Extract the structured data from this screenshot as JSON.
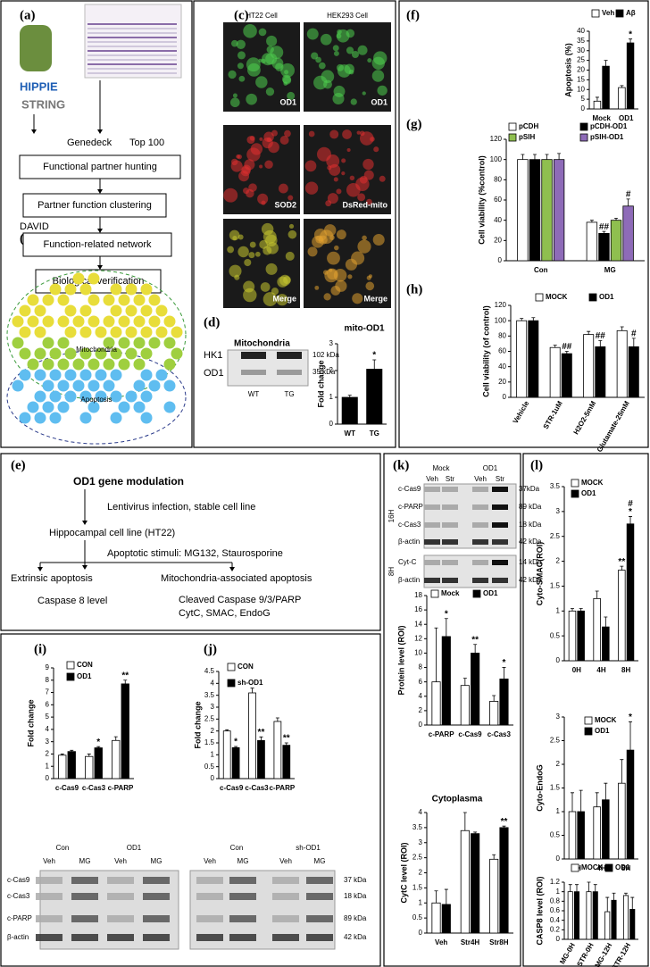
{
  "panel_labels": [
    "(a)",
    "(b)",
    "(c)",
    "(d)",
    "(e)",
    "(f)",
    "(g)",
    "(h)",
    "(i)",
    "(j)",
    "(k)",
    "(l)"
  ],
  "a": {
    "databases": [
      "HIPPIE",
      "STRING"
    ],
    "sources": [
      "Genedeck",
      "Top 100"
    ],
    "steps": [
      "Functional partner hunting",
      "Partner function clustering",
      "Function-related network",
      "Biological verification"
    ],
    "tool": "DAVID"
  },
  "b": {
    "groups": [
      "Mitochondria",
      "Apoptosis"
    ]
  },
  "c": {
    "columns": [
      "HT22 Cell",
      "HEK293 Cell"
    ],
    "image_labels": [
      "OD1",
      "OD1",
      "SOD2",
      "DsRed-mito",
      "Merge",
      "Merge"
    ]
  },
  "d": {
    "title": "Mitochondria",
    "rows": [
      "HK1",
      "OD1"
    ],
    "sizes": [
      "102 kDa",
      "35 kDa"
    ],
    "lanes": [
      "WT",
      "TG"
    ]
  },
  "e": {
    "title": "OD1 gene modulation",
    "steps": [
      "Lentivirus infection, stable cell line",
      "Hippocampal cell line (HT22)",
      "Apoptotic stimuli: MG132, Staurosporine",
      "Extrinsic apoptosis",
      "Mitochondria-associated apoptosis",
      "Caspase 8 level",
      "Cleaved Caspase 9/3/PARP",
      "CytC, SMAC, EndoG"
    ]
  },
  "ij_blot": {
    "groups": [
      "Con",
      "OD1",
      "Con",
      "sh-OD1"
    ],
    "lanes": [
      "Veh",
      "MG",
      "Veh",
      "MG",
      "Veh",
      "MG",
      "Veh",
      "MG"
    ],
    "rows": [
      "c-Cas9",
      "c-Cas3",
      "c-PARP",
      "β-actin"
    ],
    "sizes": [
      "37 kDa",
      "18 kDa",
      "89 kDa",
      "42 kDa"
    ]
  },
  "k_blot": {
    "groups": [
      "Mock",
      "OD1"
    ],
    "lanes": [
      "Veh",
      "Str",
      "Veh",
      "Str"
    ],
    "times": [
      "16H",
      "8H"
    ],
    "rows": [
      "c-Cas9",
      "c-PARP",
      "c-Cas3",
      "β-actin",
      "Cyt-C",
      "β-actin"
    ],
    "sizes": [
      "37kDa",
      "89 kDa",
      "18 kDa",
      "42 kDa",
      "14 kDa",
      "42 kDa"
    ]
  },
  "chart_data": [
    {
      "type": "bar",
      "title": "mito-OD1",
      "y_label": "Fold change",
      "categories": [
        "WT",
        "TG"
      ],
      "series": [
        {
          "color": "#000000",
          "values": [
            1.0,
            2.05
          ],
          "errors": [
            0.08,
            0.35
          ],
          "significance": [
            null,
            "*"
          ]
        }
      ],
      "ylim": [
        0,
        3
      ],
      "yticks": [
        0,
        1,
        2,
        3
      ]
    },
    {
      "type": "bar",
      "y_label": "Apoptosis (%)",
      "categories": [
        "Mock",
        "OD1"
      ],
      "series": [
        {
          "name": "Veh",
          "color": "#ffffff",
          "values": [
            4,
            11
          ],
          "errors": [
            2,
            1
          ]
        },
        {
          "name": "Aβ",
          "color": "#000000",
          "values": [
            22,
            34
          ],
          "errors": [
            3,
            2
          ],
          "significance": [
            null,
            "*"
          ]
        }
      ],
      "ylim": [
        0,
        40
      ],
      "yticks": [
        0,
        5,
        10,
        15,
        20,
        25,
        30,
        35,
        40
      ]
    },
    {
      "type": "bar",
      "y_label": "Cell viability (%control)",
      "categories": [
        "Con",
        "MG"
      ],
      "series": [
        {
          "name": "pCDH",
          "color": "#ffffff",
          "values": [
            100,
            38
          ],
          "errors": [
            5,
            2
          ]
        },
        {
          "name": "pCDH-OD1",
          "color": "#000000",
          "values": [
            100,
            27
          ],
          "errors": [
            5,
            2
          ],
          "significance": [
            null,
            "##"
          ]
        },
        {
          "name": "pSIH",
          "color": "#8fbf4f",
          "values": [
            100,
            40
          ],
          "errors": [
            5,
            2
          ]
        },
        {
          "name": "pSIH-OD1",
          "color": "#8e6bb8",
          "values": [
            100,
            54
          ],
          "errors": [
            6,
            7
          ],
          "significance": [
            null,
            "#"
          ]
        }
      ],
      "ylim": [
        0,
        120
      ],
      "yticks": [
        0,
        20,
        40,
        60,
        80,
        100,
        120
      ]
    },
    {
      "type": "bar",
      "y_label": "Cell viability (of control)",
      "categories": [
        "Vehicle",
        "STR-1uM",
        "H2O2-5mM",
        "Glutamate-25mM"
      ],
      "series": [
        {
          "name": "MOCK",
          "color": "#ffffff",
          "values": [
            100,
            65,
            82,
            87
          ],
          "errors": [
            3,
            3,
            4,
            5
          ]
        },
        {
          "name": "OD1",
          "color": "#000000",
          "values": [
            100,
            57,
            66,
            66
          ],
          "errors": [
            4,
            3,
            8,
            11
          ],
          "significance": [
            null,
            "##",
            "##",
            "#"
          ]
        }
      ],
      "ylim": [
        0,
        120
      ],
      "yticks": [
        0,
        20,
        40,
        60,
        80,
        100,
        120
      ]
    },
    {
      "type": "bar",
      "y_label": "Fold change",
      "categories": [
        "c-Cas9",
        "c-Cas3",
        "c-PARP"
      ],
      "series": [
        {
          "name": "CON",
          "color": "#ffffff",
          "values": [
            1.9,
            1.8,
            3.1
          ],
          "errors": [
            0.1,
            0.2,
            0.3
          ]
        },
        {
          "name": "OD1",
          "color": "#000000",
          "values": [
            2.2,
            2.5,
            7.7
          ],
          "errors": [
            0.1,
            0.1,
            0.3
          ],
          "significance": [
            null,
            "*",
            "**"
          ]
        }
      ],
      "ylim": [
        0,
        9
      ],
      "yticks": [
        0,
        1,
        2,
        3,
        4,
        5,
        6,
        7,
        8,
        9
      ]
    },
    {
      "type": "bar",
      "y_label": "Fold change",
      "categories": [
        "c-Cas9",
        "c-Cas3",
        "c-PARP"
      ],
      "series": [
        {
          "name": "CON",
          "color": "#ffffff",
          "values": [
            2.0,
            3.6,
            2.4
          ],
          "errors": [
            0.05,
            0.2,
            0.15
          ]
        },
        {
          "name": "sh-OD1",
          "color": "#000000",
          "values": [
            1.3,
            1.6,
            1.4
          ],
          "errors": [
            0.05,
            0.15,
            0.1
          ],
          "significance": [
            "*",
            "**",
            "**"
          ]
        }
      ],
      "ylim": [
        0,
        4.5
      ],
      "yticks": [
        0,
        0.5,
        1,
        1.5,
        2,
        2.5,
        3,
        3.5,
        4,
        4.5
      ]
    },
    {
      "type": "bar",
      "y_label": "Protein level (ROI)",
      "categories": [
        "c-PARP",
        "c-Cas9",
        "c-Cas3"
      ],
      "series": [
        {
          "name": "Mock",
          "color": "#ffffff",
          "values": [
            6,
            5.5,
            3.3
          ],
          "errors": [
            7.5,
            1,
            0.8
          ]
        },
        {
          "name": "OD1",
          "color": "#000000",
          "values": [
            12.3,
            10,
            6.4
          ],
          "errors": [
            2.5,
            1.2,
            1.6
          ],
          "significance": [
            "*",
            "**",
            "*"
          ]
        }
      ],
      "ylim": [
        0,
        18
      ],
      "yticks": [
        0,
        2,
        4,
        6,
        8,
        10,
        12,
        14,
        16,
        18
      ]
    },
    {
      "type": "bar",
      "title": "Cytoplasma",
      "y_label": "CytC level (ROI)",
      "categories": [
        "Veh",
        "Str4H",
        "Str8H"
      ],
      "series": [
        {
          "color": "#ffffff",
          "values": [
            1,
            3.4,
            2.45
          ],
          "errors": [
            0.4,
            0.6,
            0.15
          ]
        },
        {
          "color": "#000000",
          "values": [
            0.95,
            3.3,
            3.5
          ],
          "errors": [
            0.5,
            0.05,
            0.05
          ],
          "significance": [
            null,
            null,
            "**"
          ]
        }
      ],
      "ylim": [
        0,
        4
      ],
      "yticks": [
        0,
        0.5,
        1,
        1.5,
        2,
        2.5,
        3,
        3.5,
        4
      ]
    },
    {
      "type": "bar",
      "y_label": "Cyto-SMAC(ROI)",
      "categories": [
        "0H",
        "4H",
        "8H"
      ],
      "series": [
        {
          "name": "MOCK",
          "color": "#ffffff",
          "values": [
            1,
            1.25,
            1.82
          ],
          "errors": [
            0.05,
            0.15,
            0.08
          ],
          "significance": [
            null,
            null,
            "**"
          ]
        },
        {
          "name": "OD1",
          "color": "#000000",
          "values": [
            1,
            0.68,
            2.75
          ],
          "errors": [
            0.05,
            0.2,
            0.15
          ],
          "significance": [
            null,
            null,
            [
              "#",
              "*"
            ]
          ]
        }
      ],
      "ylim": [
        0,
        3.5
      ],
      "yticks": [
        0,
        0.5,
        1,
        1.5,
        2,
        2.5,
        3,
        3.5
      ]
    },
    {
      "type": "bar",
      "y_label": "Cyto-EndoG",
      "categories": [
        "0H",
        "4H",
        "8H"
      ],
      "series": [
        {
          "name": "MOCK",
          "color": "#ffffff",
          "values": [
            1,
            1.1,
            1.6
          ],
          "errors": [
            0.4,
            0.3,
            0.5
          ]
        },
        {
          "name": "OD1",
          "color": "#000000",
          "values": [
            1,
            1.25,
            2.3
          ],
          "errors": [
            0.45,
            0.35,
            0.6
          ],
          "significance": [
            null,
            null,
            "*"
          ]
        }
      ],
      "ylim": [
        0,
        3
      ],
      "yticks": [
        0,
        0.5,
        1,
        1.5,
        2,
        2.5,
        3
      ]
    },
    {
      "type": "bar",
      "y_label": "CASP8 level (ROI)",
      "categories": [
        "MG-0H",
        "STR-0H",
        "MG-12H",
        "STR-12H"
      ],
      "series": [
        {
          "name": "MOCK",
          "color": "#ffffff",
          "values": [
            1,
            1,
            0.58,
            0.92
          ],
          "errors": [
            0.15,
            0.2,
            0.3,
            0.05
          ]
        },
        {
          "name": "OD1",
          "color": "#000000",
          "values": [
            1,
            1,
            0.82,
            0.63
          ],
          "errors": [
            0.15,
            0.15,
            0.15,
            0.25
          ]
        }
      ],
      "ylim": [
        0,
        1.2
      ],
      "yticks": [
        0,
        0.2,
        0.4,
        0.6,
        0.8,
        1,
        1.2
      ]
    }
  ]
}
